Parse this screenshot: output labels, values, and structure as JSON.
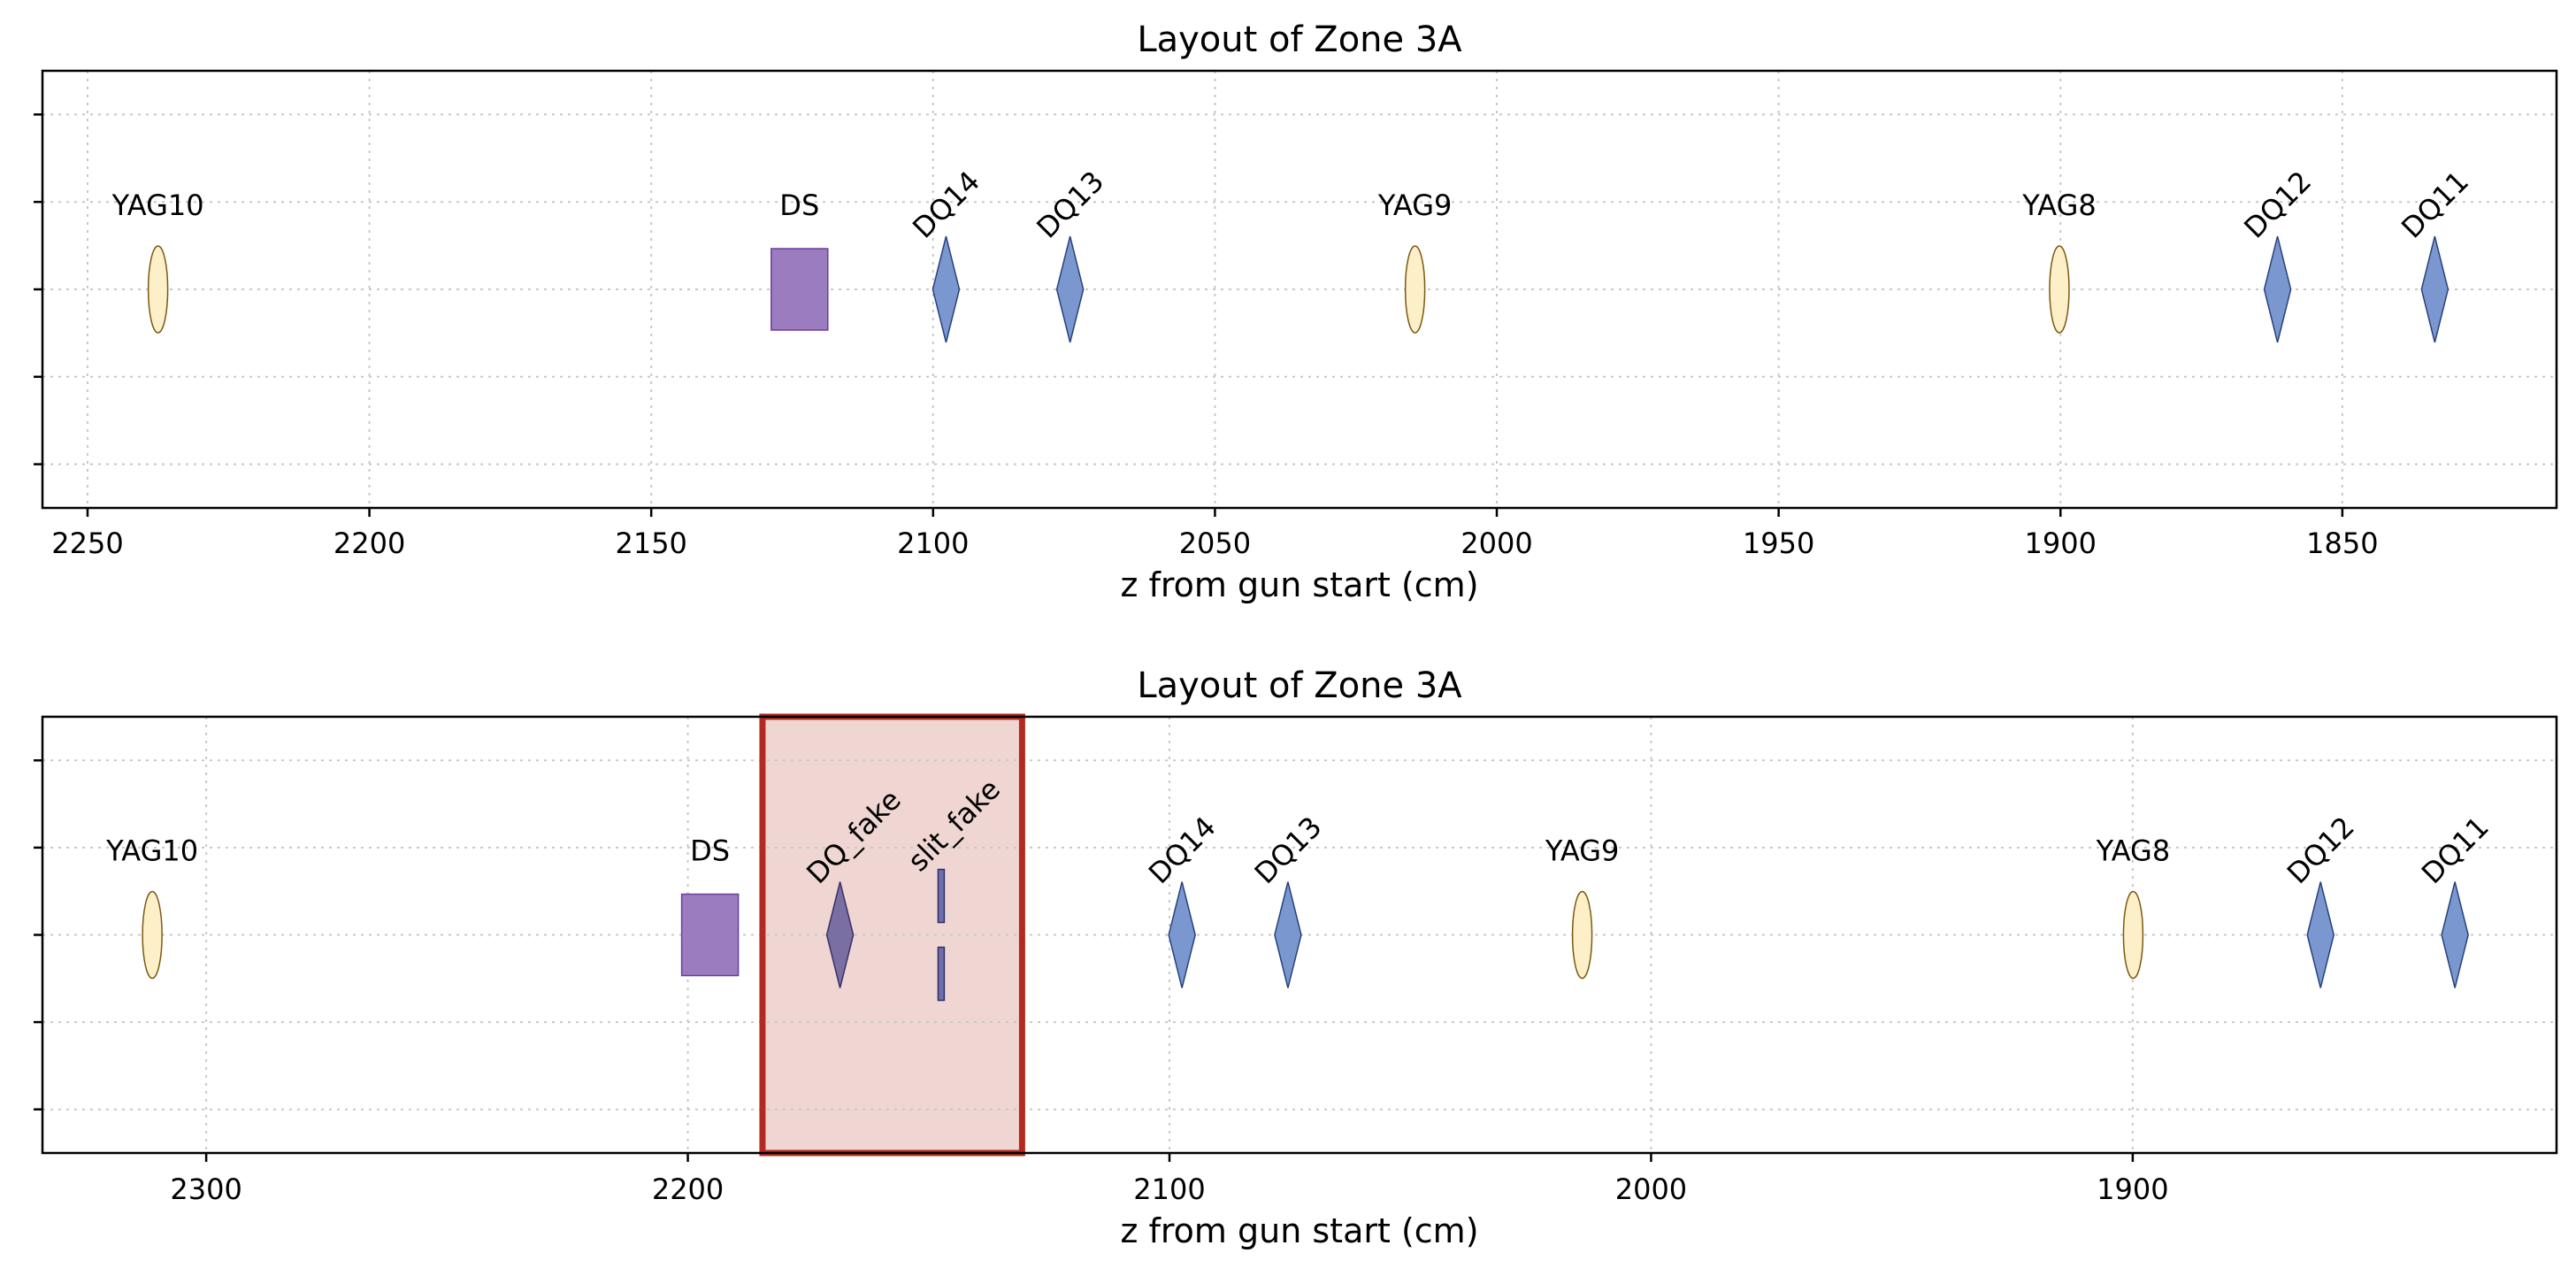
{
  "chart_data": [
    {
      "type": "scatter",
      "title": "Layout of Zone 3A",
      "xlabel": "z from gun start (cm)",
      "ylabel": "",
      "xlim": [
        2258,
        1812
      ],
      "x_inverted": true,
      "ylim": [
        -2.5,
        2.5
      ],
      "grid": true,
      "xticks": [
        2250,
        2200,
        2150,
        2100,
        2050,
        2000,
        1950,
        1900,
        1850
      ],
      "xtick_labels": [
        "2250",
        "2200",
        "2150",
        "2100",
        "2050",
        "2000",
        "1950",
        "1900",
        "1850"
      ],
      "yticks": [
        -2,
        -1,
        0,
        1,
        2
      ],
      "elements": [
        {
          "name": "YAG10",
          "z": 2237.5,
          "kind": "yag",
          "label_rotated": false
        },
        {
          "name": "DS",
          "z": 2123.7,
          "kind": "dipole",
          "label_rotated": false
        },
        {
          "name": "DQ14",
          "z": 2097.7,
          "kind": "quad",
          "label_rotated": true
        },
        {
          "name": "DQ13",
          "z": 2075.7,
          "kind": "quad",
          "label_rotated": true
        },
        {
          "name": "YAG9",
          "z": 2014.5,
          "kind": "yag",
          "label_rotated": false
        },
        {
          "name": "YAG8",
          "z": 1900.2,
          "kind": "yag",
          "label_rotated": false
        },
        {
          "name": "DQ12",
          "z": 1861.5,
          "kind": "quad",
          "label_rotated": true
        },
        {
          "name": "DQ11",
          "z": 1833.6,
          "kind": "quad",
          "label_rotated": true
        }
      ],
      "highlight": null
    },
    {
      "type": "scatter",
      "title": "Layout of Zone 3A",
      "xlabel": "z from gun start (cm)",
      "ylabel": "",
      "xlim": [
        2334,
        1812
      ],
      "x_inverted": true,
      "ylim": [
        -2.5,
        2.5
      ],
      "grid": true,
      "xticks": [
        2300,
        2200,
        2100,
        2000,
        1900
      ],
      "xtick_labels": [
        "2300",
        "2200",
        "2100",
        "2000",
        "1900"
      ],
      "yticks": [
        -2,
        -1,
        0,
        1,
        2
      ],
      "elements": [
        {
          "name": "YAG10",
          "z": 2311.2,
          "kind": "yag",
          "label_rotated": false
        },
        {
          "name": "DS",
          "z": 2195.4,
          "kind": "dipole",
          "label_rotated": false
        },
        {
          "name": "DQ_fake",
          "z": 2168.4,
          "kind": "quad_fake",
          "label_rotated": true
        },
        {
          "name": "slit_fake",
          "z": 2147.4,
          "kind": "slit",
          "label_rotated": true
        },
        {
          "name": "DQ14",
          "z": 2097.4,
          "kind": "quad",
          "label_rotated": true
        },
        {
          "name": "DQ13",
          "z": 2075.4,
          "kind": "quad",
          "label_rotated": true
        },
        {
          "name": "YAG9",
          "z": 2014.3,
          "kind": "yag",
          "label_rotated": false
        },
        {
          "name": "YAG8",
          "z": 1899.9,
          "kind": "yag",
          "label_rotated": false
        },
        {
          "name": "DQ12",
          "z": 1861.0,
          "kind": "quad",
          "label_rotated": true
        },
        {
          "name": "DQ11",
          "z": 1833.1,
          "kind": "quad",
          "label_rotated": true
        }
      ],
      "highlight": {
        "z_start": 2184.5,
        "z_end": 2130.6
      }
    }
  ],
  "colors": {
    "yag_fill": "#fdf0c8",
    "yag_edge": "#7a5a14",
    "quad_fill": "#7b97d0",
    "quad_edge": "#27417a",
    "quad_fake_fill": "#7a6fa2",
    "quad_fake_edge": "#3a2f66",
    "dipole_fill": "#9b7cbf",
    "dipole_edge": "#6a3f9e",
    "slit_fill": "#6e6fa8",
    "slit_edge": "#2e2f66",
    "highlight_fill": "#efd6d3",
    "highlight_edge": "#b22a22"
  },
  "icons": {
    "yag": "ellipse-marker",
    "quad": "diamond-marker",
    "dipole": "rectangle-marker",
    "slit": "slit-bars-marker"
  }
}
